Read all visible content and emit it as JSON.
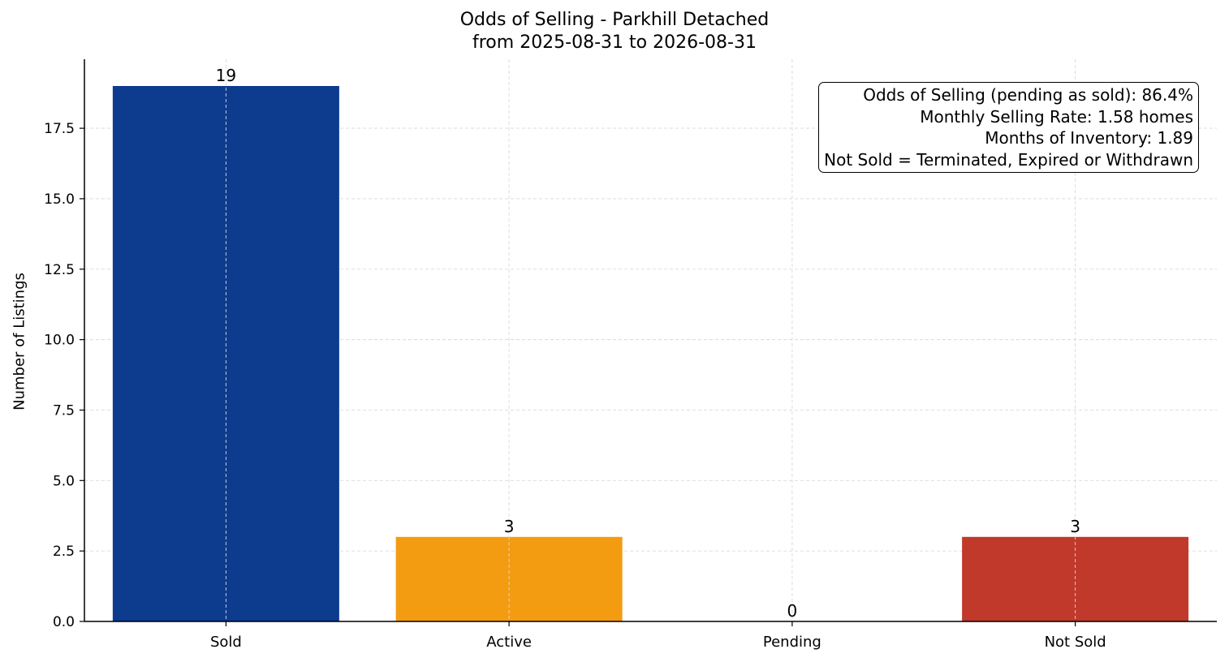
{
  "chart_data": {
    "type": "bar",
    "title": "Odds of Selling - Parkhill Detached",
    "subtitle": "from 2025-08-31 to 2026-08-31",
    "ylabel": "Number of Listings",
    "xlabel": "",
    "categories": [
      "Sold",
      "Active",
      "Pending",
      "Not Sold"
    ],
    "values": [
      19,
      3,
      0,
      3
    ],
    "data_labels": [
      "19",
      "3",
      "0",
      "3"
    ],
    "colors": [
      "#0d3b8e",
      "#f39c12",
      "#f39c12",
      "#c0392b"
    ],
    "ylim": [
      0,
      19.95
    ],
    "yticks": [
      0,
      2.5,
      5,
      7.5,
      10,
      12.5,
      15,
      17.5
    ],
    "ytick_labels": [
      "0.0",
      "2.5",
      "5.0",
      "7.5",
      "10.0",
      "12.5",
      "15.0",
      "17.5"
    ],
    "grid": true,
    "info_box": [
      "Odds of Selling (pending as sold): 86.4%",
      "Monthly Selling Rate: 1.58 homes",
      "Months of Inventory: 1.89",
      "Not Sold = Terminated, Expired or Withdrawn"
    ]
  }
}
